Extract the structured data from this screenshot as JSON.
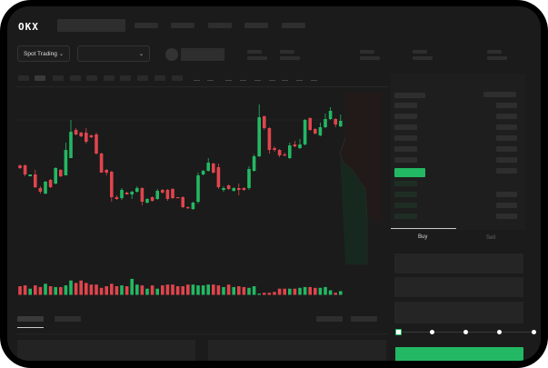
{
  "header": {
    "logo_text": "OKX"
  },
  "controls": {
    "market_type": "Spot Trading",
    "chevron": "chevron-down-icon"
  },
  "trade_panel": {
    "tabs": [
      {
        "label": "Buy",
        "active": true
      },
      {
        "label": "Sell",
        "active": false
      }
    ],
    "slider_value_percent": 0,
    "slider_steps": 5
  },
  "colors": {
    "up": "#23b863",
    "down": "#e0454d",
    "buy_button": "#23b863",
    "background": "#1b1b1b"
  },
  "chart": {
    "candles_ohlc": [
      [
        68,
        69,
        64,
        65
      ],
      [
        68,
        69,
        56,
        58
      ],
      [
        56,
        58,
        56,
        58
      ],
      [
        58,
        63,
        43,
        44
      ],
      [
        43,
        45,
        37,
        39
      ],
      [
        37,
        51,
        36,
        50
      ],
      [
        52,
        53,
        43,
        44
      ],
      [
        48,
        66,
        47,
        65
      ],
      [
        63,
        64,
        55,
        56
      ],
      [
        57,
        93,
        57,
        85
      ],
      [
        76,
        118,
        76,
        105
      ],
      [
        107,
        109,
        101,
        102
      ],
      [
        104,
        105,
        99,
        100
      ],
      [
        104,
        109,
        92,
        94
      ],
      [
        101,
        102,
        98,
        99
      ],
      [
        102,
        104,
        80,
        81
      ],
      [
        81,
        82,
        60,
        60
      ],
      [
        63,
        64,
        57,
        60
      ],
      [
        61,
        62,
        28,
        33
      ],
      [
        33,
        35,
        30,
        31
      ],
      [
        32,
        43,
        30,
        41
      ],
      [
        38,
        39,
        36,
        36
      ],
      [
        36,
        40,
        31,
        39
      ],
      [
        39,
        45,
        38,
        43
      ],
      [
        43,
        44,
        24,
        28
      ],
      [
        27,
        32,
        26,
        31
      ],
      [
        33,
        34,
        28,
        29
      ],
      [
        31,
        42,
        30,
        40
      ],
      [
        41,
        42,
        37,
        38
      ],
      [
        41,
        42,
        29,
        31
      ],
      [
        42,
        43,
        31,
        32
      ],
      [
        33,
        33,
        32,
        32
      ],
      [
        33,
        34,
        21,
        22
      ],
      [
        22,
        23,
        20,
        21
      ],
      [
        20,
        28,
        19,
        27
      ],
      [
        28,
        60,
        26,
        57
      ],
      [
        58,
        63,
        57,
        62
      ],
      [
        62,
        76,
        61,
        71
      ],
      [
        70,
        71,
        59,
        60
      ],
      [
        66,
        70,
        42,
        44
      ],
      [
        41,
        45,
        39,
        43
      ],
      [
        46,
        47,
        41,
        42
      ],
      [
        40,
        44,
        39,
        43
      ],
      [
        43,
        48,
        35,
        41
      ],
      [
        43,
        44,
        40,
        41
      ],
      [
        43,
        67,
        41,
        64
      ],
      [
        62,
        80,
        61,
        78
      ],
      [
        78,
        135,
        77,
        121
      ],
      [
        122,
        123,
        107,
        109
      ],
      [
        109,
        110,
        81,
        85
      ],
      [
        87,
        89,
        83,
        85
      ],
      [
        85,
        86,
        77,
        79
      ],
      [
        80,
        82,
        78,
        79
      ],
      [
        76,
        93,
        75,
        90
      ],
      [
        91,
        95,
        88,
        89
      ],
      [
        87,
        97,
        86,
        91
      ],
      [
        91,
        119,
        90,
        118
      ],
      [
        120,
        121,
        106,
        107
      ],
      [
        108,
        109,
        102,
        103
      ],
      [
        101,
        115,
        100,
        110
      ],
      [
        110,
        125,
        109,
        119
      ],
      [
        119,
        132,
        118,
        128
      ],
      [
        119,
        120,
        110,
        113
      ],
      [
        111,
        124,
        110,
        117
      ]
    ],
    "volumes": [
      10,
      11,
      7,
      11,
      9,
      13,
      10,
      9,
      9,
      11,
      17,
      14,
      17,
      14,
      12,
      12,
      8,
      10,
      13,
      10,
      11,
      10,
      19,
      12,
      11,
      7,
      11,
      7,
      11,
      12,
      12,
      10,
      10,
      12,
      12,
      11,
      11,
      12,
      12,
      11,
      9,
      12,
      9,
      10,
      9,
      8,
      10,
      1,
      2,
      2,
      3,
      7,
      7,
      7,
      7,
      8,
      9,
      9,
      8,
      8,
      9,
      5,
      2,
      4
    ]
  }
}
